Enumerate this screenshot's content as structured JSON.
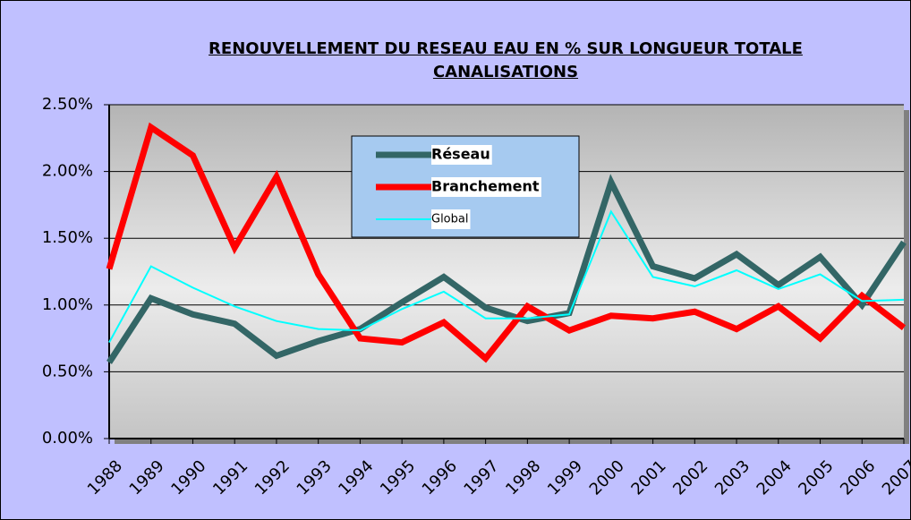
{
  "chart_data": {
    "type": "line",
    "title": "RENOUVELLEMENT DU RESEAU EAU EN % SUR LONGUEUR TOTALE CANALISATIONS",
    "categories": [
      "1988",
      "1989",
      "1990",
      "1991",
      "1992",
      "1993",
      "1994",
      "1995",
      "1996",
      "1997",
      "1998",
      "1999",
      "2000",
      "2001",
      "2002",
      "2003",
      "2004",
      "2005",
      "2006",
      "2007"
    ],
    "series": [
      {
        "name": "Réseau",
        "color": "#336666",
        "values": [
          0.57,
          1.05,
          0.93,
          0.86,
          0.62,
          0.73,
          0.82,
          1.02,
          1.21,
          0.98,
          0.88,
          0.94,
          1.92,
          1.29,
          1.2,
          1.38,
          1.15,
          1.36,
          1.0,
          1.47
        ]
      },
      {
        "name": "Branchement",
        "color": "#ff0000",
        "values": [
          1.27,
          2.33,
          2.12,
          1.43,
          1.96,
          1.23,
          0.75,
          0.72,
          0.87,
          0.6,
          0.99,
          0.81,
          0.92,
          0.9,
          0.95,
          0.82,
          0.99,
          0.75,
          1.07,
          0.83
        ]
      },
      {
        "name": "Global",
        "color": "#00ffff",
        "values": [
          0.72,
          1.29,
          1.13,
          0.99,
          0.88,
          0.82,
          0.81,
          0.97,
          1.1,
          0.9,
          0.9,
          0.93,
          1.7,
          1.21,
          1.14,
          1.26,
          1.12,
          1.23,
          1.03,
          1.04
        ]
      }
    ],
    "ylim": [
      0,
      2.5
    ],
    "yticks": [
      {
        "value": 0,
        "label": "0.00%"
      },
      {
        "value": 0.5,
        "label": "0.50%"
      },
      {
        "value": 1,
        "label": "1.00%"
      },
      {
        "value": 1.5,
        "label": "1.50%"
      },
      {
        "value": 2,
        "label": "2.00%"
      },
      {
        "value": 2.5,
        "label": "2.50%"
      }
    ],
    "grid": true
  }
}
